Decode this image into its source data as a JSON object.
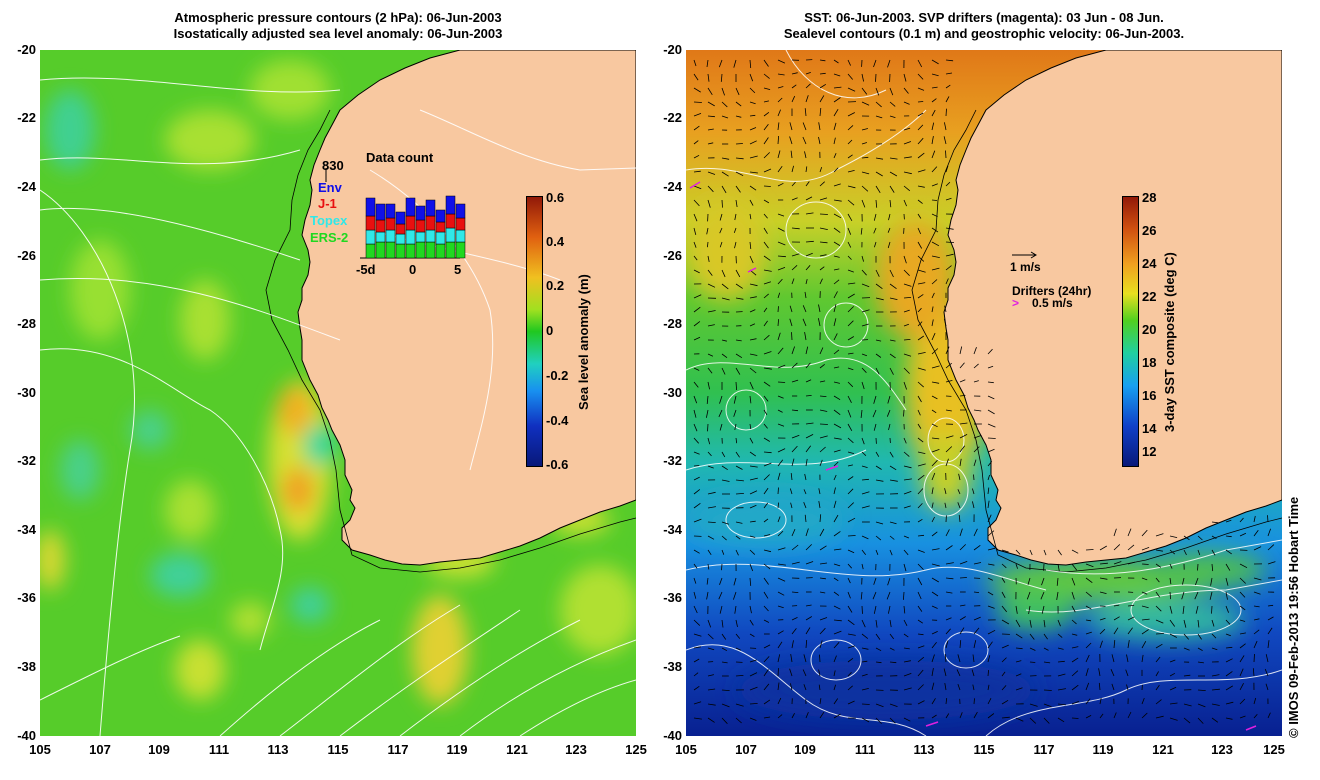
{
  "left_panel": {
    "title_line1": "Atmospheric pressure contours (2 hPa): 06-Jun-2003",
    "title_line2": "Isostatically adjusted sea level anomaly: 06-Jun-2003",
    "colorbar_title": "Sea level anomaly (m)",
    "colorbar_ticks": [
      "0.6",
      "0.4",
      "0.2",
      "0",
      "-0.2",
      "-0.4",
      "-0.6"
    ],
    "data_count": {
      "title": "Data count",
      "max_label": "830",
      "x_ticks": [
        "-5d",
        "0",
        "5"
      ],
      "legend": [
        {
          "label": "Env",
          "color": "#1010e8"
        },
        {
          "label": "J-1",
          "color": "#e81010"
        },
        {
          "label": "Topex",
          "color": "#30e8e8"
        },
        {
          "label": "ERS-2",
          "color": "#20d820"
        }
      ]
    }
  },
  "right_panel": {
    "title_line1": "SST: 06-Jun-2003. SVP drifters (magenta): 03 Jun - 08 Jun.",
    "title_line2": "Sealevel contours (0.1 m) and geostrophic velocity: 06-Jun-2003.",
    "colorbar_title": "3-day SST composite (deg C)",
    "colorbar_ticks": [
      "28",
      "26",
      "24",
      "22",
      "20",
      "18",
      "16",
      "14",
      "12"
    ],
    "velocity_scale": "1 m/s",
    "drifters_label": "Drifters (24hr)",
    "drifters_scale": "0.5 m/s"
  },
  "axes": {
    "lat_ticks": [
      "-20",
      "-22",
      "-24",
      "-26",
      "-28",
      "-30",
      "-32",
      "-34",
      "-36",
      "-38",
      "-40"
    ],
    "lon_ticks": [
      "105",
      "107",
      "109",
      "111",
      "113",
      "115",
      "117",
      "119",
      "121",
      "123",
      "125"
    ]
  },
  "credit": "© IMOS 09-Feb-2013 19:56 Hobart Time",
  "colors": {
    "land": "#f8c8a0",
    "sla_base": "#5ad02a",
    "sst_warm": "#e88a10",
    "sst_cold": "#0830a8",
    "drifter": "#e020e0"
  }
}
